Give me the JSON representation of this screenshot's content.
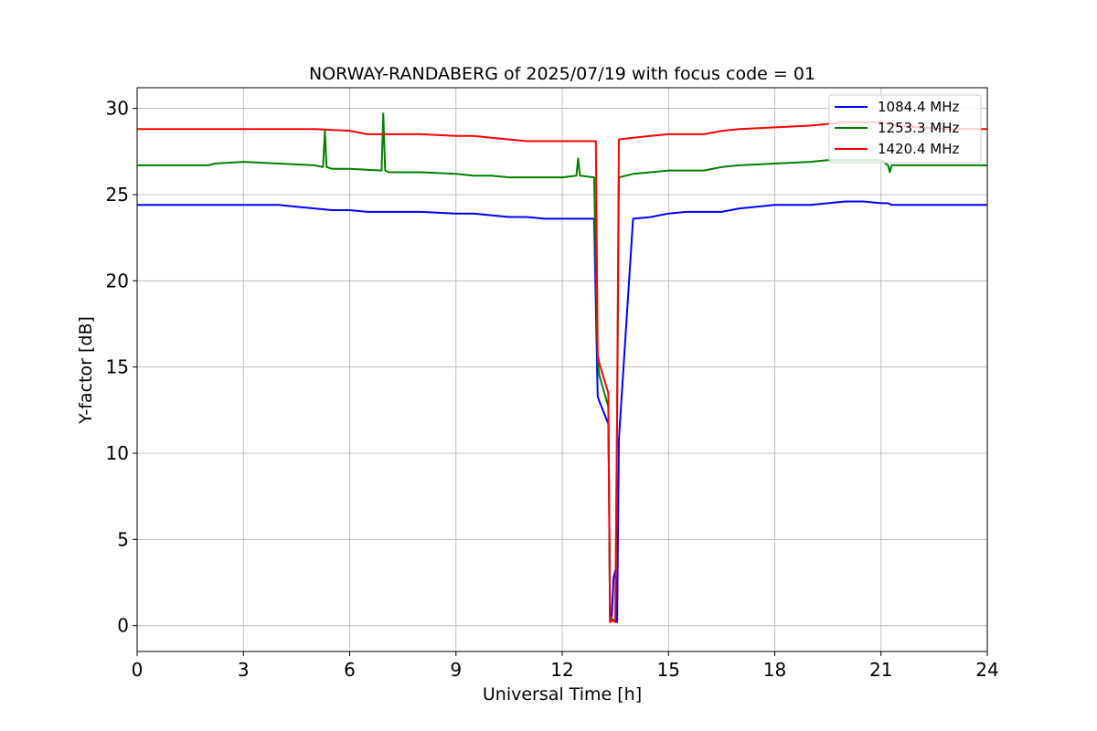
{
  "chart_data": {
    "type": "line",
    "title": "NORWAY-RANDABERG of 2025/07/19 with focus code = 01",
    "xlabel": "Universal Time [h]",
    "ylabel": "Y-factor [dB]",
    "xlim": [
      0,
      24
    ],
    "ylim": [
      -1.5,
      31.2
    ],
    "xticks": [
      0,
      3,
      6,
      9,
      12,
      15,
      18,
      21,
      24
    ],
    "yticks": [
      0,
      5,
      10,
      15,
      20,
      25,
      30
    ],
    "grid": true,
    "legend_position": "top-right",
    "series": [
      {
        "name": "1084.4 MHz",
        "color": "#0000ff",
        "x": [
          0,
          0.5,
          1,
          2,
          3,
          4,
          4.5,
          5,
          5.5,
          6,
          6.5,
          7,
          8,
          9,
          9.5,
          10,
          10.5,
          11,
          11.5,
          12,
          12.5,
          12.9,
          13.0,
          13.05,
          13.3,
          13.32,
          13.35,
          13.4,
          13.45,
          13.5,
          13.55,
          13.6,
          14,
          14.5,
          15,
          15.5,
          16,
          16.5,
          17,
          17.5,
          18,
          18.5,
          19,
          19.5,
          20,
          20.5,
          21,
          21.2,
          21.3,
          22,
          23,
          24
        ],
        "y": [
          24.4,
          24.4,
          24.4,
          24.4,
          24.4,
          24.4,
          24.3,
          24.2,
          24.1,
          24.1,
          24.0,
          24.0,
          24.0,
          23.9,
          23.9,
          23.8,
          23.7,
          23.7,
          23.6,
          23.6,
          23.6,
          23.6,
          13.3,
          13.0,
          11.7,
          8.5,
          0.3,
          0.6,
          2.8,
          3.2,
          0.2,
          10.8,
          23.6,
          23.7,
          23.9,
          24.0,
          24.0,
          24.0,
          24.2,
          24.3,
          24.4,
          24.4,
          24.4,
          24.5,
          24.6,
          24.6,
          24.5,
          24.5,
          24.4,
          24.4,
          24.4,
          24.4
        ]
      },
      {
        "name": "1253.3 MHz",
        "color": "#008000",
        "x": [
          0,
          1,
          2,
          2.2,
          3,
          4,
          5,
          5.25,
          5.3,
          5.35,
          5.5,
          6,
          6.9,
          6.95,
          7.0,
          7.1,
          8,
          9,
          9.5,
          10,
          10.5,
          11,
          11.5,
          12,
          12.4,
          12.45,
          12.5,
          12.9,
          13.0,
          13.05,
          13.3,
          13.35,
          13.4,
          13.5,
          13.55,
          13.6,
          14,
          14.5,
          15,
          16,
          16.5,
          17,
          18,
          19,
          19.5,
          20,
          21,
          21.2,
          21.25,
          21.3,
          22,
          24
        ],
        "y": [
          26.7,
          26.7,
          26.7,
          26.8,
          26.9,
          26.8,
          26.7,
          26.6,
          28.7,
          26.6,
          26.5,
          26.5,
          26.4,
          29.7,
          26.4,
          26.3,
          26.3,
          26.2,
          26.1,
          26.1,
          26.0,
          26.0,
          26.0,
          26.0,
          26.1,
          27.1,
          26.1,
          26.0,
          15.3,
          14.5,
          12.7,
          0.4,
          0.4,
          0.3,
          12.3,
          26.0,
          26.2,
          26.3,
          26.4,
          26.4,
          26.6,
          26.7,
          26.8,
          26.9,
          27.0,
          27.0,
          27.0,
          26.7,
          26.3,
          26.7,
          26.7,
          26.7
        ]
      },
      {
        "name": "1420.4 MHz",
        "color": "#ff0000",
        "x": [
          0,
          1,
          2,
          3,
          4,
          5,
          6,
          6.5,
          7,
          8,
          9,
          9.5,
          10,
          10.5,
          11,
          11.5,
          12,
          12.5,
          12.95,
          13.0,
          13.05,
          13.3,
          13.35,
          13.4,
          13.5,
          13.55,
          13.6,
          14,
          14.5,
          15,
          15.5,
          16,
          16.5,
          17,
          18,
          19,
          19.5,
          20,
          21,
          21.5,
          22,
          23,
          24
        ],
        "y": [
          28.8,
          28.8,
          28.8,
          28.8,
          28.8,
          28.8,
          28.7,
          28.5,
          28.5,
          28.5,
          28.4,
          28.4,
          28.3,
          28.2,
          28.1,
          28.1,
          28.1,
          28.1,
          28.1,
          15.7,
          15.2,
          13.5,
          0.2,
          0.3,
          0.2,
          12.8,
          28.2,
          28.3,
          28.4,
          28.5,
          28.5,
          28.5,
          28.7,
          28.8,
          28.9,
          29.0,
          29.1,
          29.2,
          29.2,
          29.0,
          28.9,
          28.8,
          28.8
        ]
      }
    ]
  }
}
